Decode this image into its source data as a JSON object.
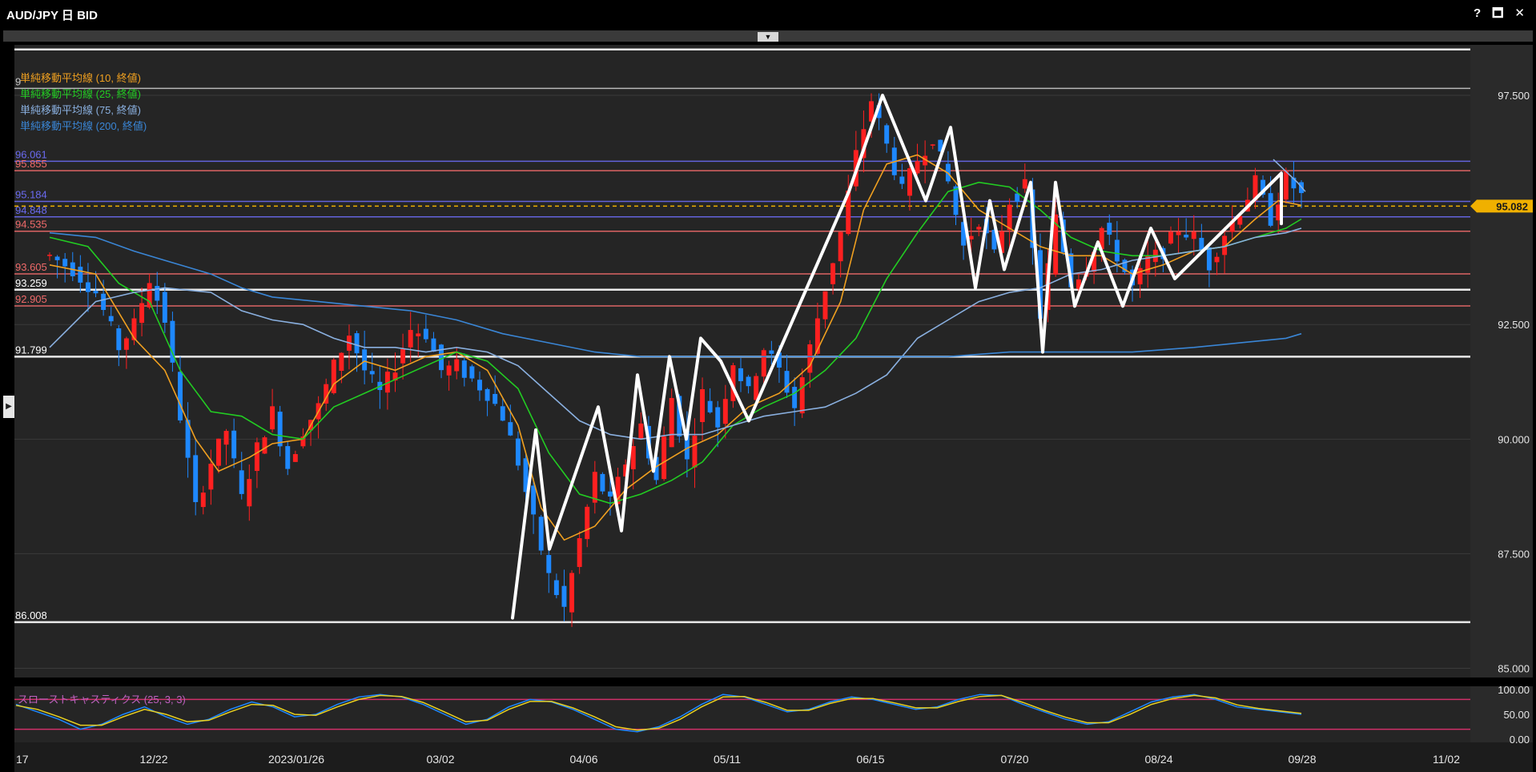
{
  "window": {
    "title": "AUD/JPY 日 BID",
    "help": "?",
    "maximize": "🗖",
    "close": "✕",
    "collapse": "▼",
    "side": "▶"
  },
  "legend": [
    {
      "label": "単純移動平均線 (10, 終値)",
      "color": "#f0a020"
    },
    {
      "label": "単純移動平均線 (25, 終値)",
      "color": "#22cc22"
    },
    {
      "label": "単純移動平均線 (75, 終値)",
      "color": "#8ab0e0"
    },
    {
      "label": "単純移動平均線 (200, 終値)",
      "color": "#3a86d6"
    }
  ],
  "chart_data": {
    "type": "candlestick",
    "pair": "AUD/JPY",
    "timeframe": "日",
    "price_type": "BID",
    "x_ticks": [
      "17",
      "12/22",
      "2023/01/26",
      "03/02",
      "04/06",
      "05/11",
      "06/15",
      "07/20",
      "08/24",
      "09/28",
      "11/02"
    ],
    "y_ticks": [
      "97.500",
      "92.500",
      "90.000",
      "87.500",
      "85.000"
    ],
    "ylim": [
      84.8,
      98.6
    ],
    "current_price": "95.082",
    "horizontal_levels": [
      {
        "value": 96.061,
        "label": "96.061",
        "color": "#6a6af0"
      },
      {
        "value": 95.855,
        "label": "95.855",
        "color": "#f06a6a"
      },
      {
        "value": 95.184,
        "label": "95.184",
        "color": "#6a6af0"
      },
      {
        "value": 94.848,
        "label": "94.848",
        "color": "#6a6af0"
      },
      {
        "value": 94.535,
        "label": "94.535",
        "color": "#f06a6a"
      },
      {
        "value": 93.605,
        "label": "93.605",
        "color": "#f06a6a"
      },
      {
        "value": 93.259,
        "label": "93.259",
        "color": "#ffffff"
      },
      {
        "value": 92.905,
        "label": "92.905",
        "color": "#f06a6a"
      },
      {
        "value": 91.799,
        "label": "91.799",
        "color": "#ffffff"
      },
      {
        "value": 86.008,
        "label": "86.008",
        "color": "#ffffff"
      },
      {
        "value": 97.65,
        "label": "9",
        "color": "#c8c8c8"
      },
      {
        "value": 98.5,
        "label": "",
        "color": "#ffffff"
      }
    ],
    "candle_trend": [
      [
        0,
        94.0
      ],
      [
        3,
        93.7
      ],
      [
        6,
        93.2
      ],
      [
        9,
        92.0
      ],
      [
        11,
        92.5
      ],
      [
        13,
        93.5
      ],
      [
        15,
        92.6
      ],
      [
        17,
        90.5
      ],
      [
        19,
        88.5
      ],
      [
        21,
        89.5
      ],
      [
        23,
        90.2
      ],
      [
        25,
        88.7
      ],
      [
        27,
        89.8
      ],
      [
        29,
        90.6
      ],
      [
        31,
        89.4
      ],
      [
        33,
        90.2
      ],
      [
        35,
        90.7
      ],
      [
        37,
        91.6
      ],
      [
        39,
        92.3
      ],
      [
        41,
        91.5
      ],
      [
        43,
        91.0
      ],
      [
        45,
        91.6
      ],
      [
        47,
        92.4
      ],
      [
        49,
        92.3
      ],
      [
        51,
        91.5
      ],
      [
        53,
        91.6
      ],
      [
        55,
        91.3
      ],
      [
        57,
        91.0
      ],
      [
        59,
        90.5
      ],
      [
        61,
        89.5
      ],
      [
        63,
        88.2
      ],
      [
        65,
        87.0
      ],
      [
        67,
        86.3
      ],
      [
        69,
        87.8
      ],
      [
        71,
        89.2
      ],
      [
        73,
        88.6
      ],
      [
        75,
        89.5
      ],
      [
        77,
        90.3
      ],
      [
        79,
        89.1
      ],
      [
        81,
        90.9
      ],
      [
        83,
        89.5
      ],
      [
        85,
        91.0
      ],
      [
        87,
        90.3
      ],
      [
        89,
        91.7
      ],
      [
        91,
        91.0
      ],
      [
        93,
        92.0
      ],
      [
        95,
        91.5
      ],
      [
        97,
        90.7
      ],
      [
        99,
        92.0
      ],
      [
        101,
        93.3
      ],
      [
        103,
        94.5
      ],
      [
        105,
        96.2
      ],
      [
        107,
        97.4
      ],
      [
        109,
        96.4
      ],
      [
        111,
        95.4
      ],
      [
        113,
        96.1
      ],
      [
        115,
        96.6
      ],
      [
        117,
        95.6
      ],
      [
        119,
        94.2
      ],
      [
        121,
        94.8
      ],
      [
        123,
        94.0
      ],
      [
        125,
        95.2
      ],
      [
        127,
        95.5
      ],
      [
        129,
        92.7
      ],
      [
        131,
        94.8
      ],
      [
        133,
        93.4
      ],
      [
        135,
        93.8
      ],
      [
        137,
        94.6
      ],
      [
        139,
        94.0
      ],
      [
        141,
        93.3
      ],
      [
        143,
        93.9
      ],
      [
        145,
        94.1
      ],
      [
        147,
        94.6
      ],
      [
        149,
        94.4
      ],
      [
        151,
        93.8
      ],
      [
        153,
        94.5
      ],
      [
        155,
        95.0
      ],
      [
        157,
        95.6
      ],
      [
        159,
        94.8
      ],
      [
        161,
        95.7
      ],
      [
        163,
        95.3
      ]
    ],
    "candle_index_range": [
      0,
      163
    ],
    "series": [
      {
        "name": "単純移動平均線 (10, 終値)",
        "color": "#f0a020",
        "points": [
          [
            0,
            93.8
          ],
          [
            6,
            93.6
          ],
          [
            11,
            92.2
          ],
          [
            15,
            91.5
          ],
          [
            19,
            90.0
          ],
          [
            22,
            89.3
          ],
          [
            26,
            89.6
          ],
          [
            29,
            89.9
          ],
          [
            33,
            90.0
          ],
          [
            37,
            91.2
          ],
          [
            41,
            91.7
          ],
          [
            45,
            91.5
          ],
          [
            49,
            91.8
          ],
          [
            53,
            91.9
          ],
          [
            57,
            91.5
          ],
          [
            61,
            90.3
          ],
          [
            64,
            88.5
          ],
          [
            67,
            87.8
          ],
          [
            71,
            88.1
          ],
          [
            75,
            88.9
          ],
          [
            79,
            89.4
          ],
          [
            83,
            89.8
          ],
          [
            87,
            90.1
          ],
          [
            91,
            90.7
          ],
          [
            95,
            91.0
          ],
          [
            99,
            91.6
          ],
          [
            103,
            93.0
          ],
          [
            106,
            95.0
          ],
          [
            109,
            96.0
          ],
          [
            113,
            96.2
          ],
          [
            117,
            95.8
          ],
          [
            121,
            95.0
          ],
          [
            125,
            94.6
          ],
          [
            129,
            94.2
          ],
          [
            133,
            94.0
          ],
          [
            137,
            94.0
          ],
          [
            141,
            93.6
          ],
          [
            145,
            93.8
          ],
          [
            149,
            94.1
          ],
          [
            153,
            94.2
          ],
          [
            157,
            94.8
          ],
          [
            160,
            95.2
          ],
          [
            163,
            95.1
          ]
        ]
      },
      {
        "name": "単純移動平均線 (25, 終値)",
        "color": "#22cc22",
        "points": [
          [
            0,
            94.4
          ],
          [
            5,
            94.2
          ],
          [
            9,
            93.4
          ],
          [
            13,
            93.0
          ],
          [
            17,
            91.5
          ],
          [
            21,
            90.6
          ],
          [
            25,
            90.5
          ],
          [
            29,
            90.1
          ],
          [
            33,
            90.0
          ],
          [
            37,
            90.7
          ],
          [
            41,
            91.0
          ],
          [
            45,
            91.3
          ],
          [
            49,
            91.6
          ],
          [
            53,
            91.9
          ],
          [
            57,
            91.7
          ],
          [
            61,
            91.1
          ],
          [
            65,
            89.7
          ],
          [
            69,
            88.8
          ],
          [
            73,
            88.6
          ],
          [
            77,
            88.8
          ],
          [
            81,
            89.1
          ],
          [
            85,
            89.5
          ],
          [
            89,
            90.3
          ],
          [
            93,
            90.7
          ],
          [
            97,
            91.0
          ],
          [
            101,
            91.5
          ],
          [
            105,
            92.2
          ],
          [
            109,
            93.5
          ],
          [
            113,
            94.5
          ],
          [
            117,
            95.4
          ],
          [
            121,
            95.6
          ],
          [
            125,
            95.5
          ],
          [
            129,
            95.0
          ],
          [
            133,
            94.4
          ],
          [
            137,
            94.1
          ],
          [
            141,
            94.0
          ],
          [
            145,
            94.0
          ],
          [
            149,
            94.1
          ],
          [
            153,
            94.2
          ],
          [
            157,
            94.4
          ],
          [
            161,
            94.6
          ],
          [
            163,
            94.8
          ]
        ]
      },
      {
        "name": "単純移動平均線 (75, 終値)",
        "color": "#8ab0e0",
        "points": [
          [
            0,
            92.0
          ],
          [
            6,
            93.0
          ],
          [
            11,
            93.2
          ],
          [
            15,
            93.3
          ],
          [
            21,
            93.2
          ],
          [
            25,
            92.8
          ],
          [
            29,
            92.6
          ],
          [
            33,
            92.5
          ],
          [
            37,
            92.2
          ],
          [
            41,
            92.0
          ],
          [
            45,
            92.0
          ],
          [
            49,
            91.9
          ],
          [
            53,
            92.0
          ],
          [
            57,
            91.9
          ],
          [
            61,
            91.6
          ],
          [
            65,
            91.0
          ],
          [
            69,
            90.4
          ],
          [
            73,
            90.1
          ],
          [
            77,
            90.0
          ],
          [
            81,
            90.1
          ],
          [
            85,
            90.1
          ],
          [
            89,
            90.3
          ],
          [
            93,
            90.5
          ],
          [
            97,
            90.6
          ],
          [
            101,
            90.7
          ],
          [
            105,
            91.0
          ],
          [
            109,
            91.4
          ],
          [
            113,
            92.2
          ],
          [
            117,
            92.6
          ],
          [
            121,
            93.0
          ],
          [
            125,
            93.2
          ],
          [
            129,
            93.3
          ],
          [
            133,
            93.6
          ],
          [
            137,
            93.7
          ],
          [
            141,
            93.9
          ],
          [
            145,
            94.0
          ],
          [
            149,
            94.1
          ],
          [
            153,
            94.2
          ],
          [
            157,
            94.4
          ],
          [
            161,
            94.5
          ],
          [
            163,
            94.6
          ]
        ]
      },
      {
        "name": "単純移動平均線 (200, 終値)",
        "color": "#3a86d6",
        "points": [
          [
            0,
            94.5
          ],
          [
            6,
            94.4
          ],
          [
            11,
            94.1
          ],
          [
            15,
            93.9
          ],
          [
            21,
            93.6
          ],
          [
            25,
            93.3
          ],
          [
            29,
            93.1
          ],
          [
            35,
            93.0
          ],
          [
            41,
            92.9
          ],
          [
            47,
            92.8
          ],
          [
            53,
            92.6
          ],
          [
            59,
            92.3
          ],
          [
            65,
            92.1
          ],
          [
            71,
            91.9
          ],
          [
            77,
            91.8
          ],
          [
            85,
            91.8
          ],
          [
            93,
            91.8
          ],
          [
            101,
            91.8
          ],
          [
            109,
            91.8
          ],
          [
            117,
            91.8
          ],
          [
            125,
            91.9
          ],
          [
            133,
            91.9
          ],
          [
            141,
            91.9
          ],
          [
            149,
            92.0
          ],
          [
            155,
            92.1
          ],
          [
            161,
            92.2
          ],
          [
            163,
            92.3
          ]
        ]
      }
    ],
    "annotations": {
      "zigzag": [
        [
          86.1,
          640
        ],
        [
          90.2,
          669
        ],
        [
          87.6,
          686
        ],
        [
          90.7,
          747
        ],
        [
          88.0,
          776
        ],
        [
          91.4,
          796
        ],
        [
          89.3,
          816
        ],
        [
          91.8,
          836
        ],
        [
          90.0,
          857
        ],
        [
          92.2,
          875
        ],
        [
          91.7,
          900
        ],
        [
          90.4,
          935
        ],
        [
          95.4,
          1060
        ],
        [
          97.5,
          1102
        ],
        [
          95.2,
          1156
        ],
        [
          96.8,
          1187
        ],
        [
          93.3,
          1218
        ],
        [
          95.2,
          1236
        ],
        [
          93.7,
          1254
        ],
        [
          95.6,
          1287
        ],
        [
          91.9,
          1302
        ],
        [
          95.6,
          1318
        ],
        [
          92.9,
          1342
        ],
        [
          94.3,
          1371
        ],
        [
          92.9,
          1402
        ],
        [
          94.6,
          1437
        ],
        [
          93.5,
          1467
        ],
        [
          95.8,
          1600
        ],
        [
          94.7,
          1600
        ]
      ],
      "trend_short": [
        [
          96.1,
          1590
        ],
        [
          95.6,
          1620
        ],
        [
          95.4,
          1630
        ]
      ]
    },
    "oscillator": {
      "name": "スローストキャスティクス (25, 3, 3)",
      "y_ticks": [
        "100.00",
        "50.00",
        "0.00"
      ],
      "ylim": [
        0,
        100
      ],
      "bands": [
        80,
        20
      ],
      "k": [
        70,
        55,
        40,
        20,
        30,
        50,
        65,
        45,
        30,
        40,
        60,
        75,
        65,
        45,
        50,
        70,
        85,
        90,
        85,
        70,
        50,
        30,
        40,
        65,
        80,
        75,
        60,
        40,
        20,
        15,
        25,
        45,
        70,
        90,
        85,
        70,
        55,
        60,
        75,
        85,
        80,
        70,
        60,
        65,
        80,
        90,
        88,
        70,
        55,
        40,
        30,
        35,
        55,
        75,
        85,
        90,
        80,
        65,
        60,
        55,
        50
      ],
      "d": [
        68,
        60,
        45,
        28,
        28,
        45,
        60,
        50,
        35,
        38,
        55,
        70,
        68,
        50,
        48,
        65,
        80,
        88,
        86,
        74,
        55,
        35,
        38,
        60,
        76,
        76,
        63,
        45,
        25,
        18,
        22,
        40,
        65,
        85,
        86,
        74,
        58,
        58,
        72,
        82,
        82,
        73,
        63,
        63,
        76,
        86,
        88,
        74,
        58,
        44,
        33,
        33,
        50,
        70,
        82,
        88,
        83,
        69,
        62,
        57,
        52
      ]
    }
  }
}
